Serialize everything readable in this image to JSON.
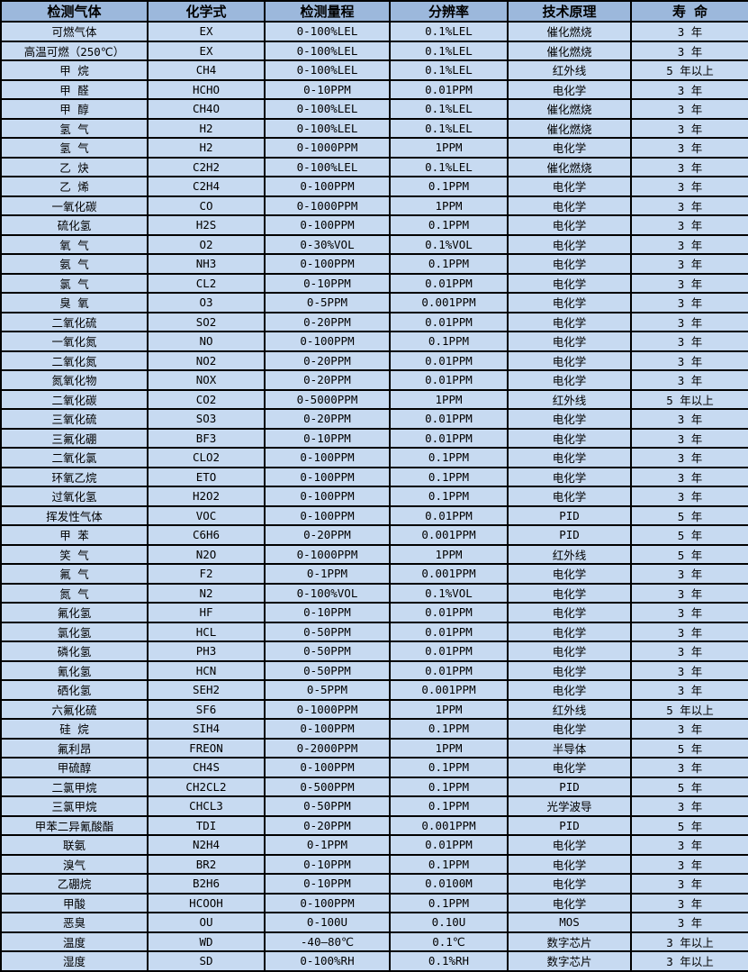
{
  "colors": {
    "header_bg": "#9cb8dc",
    "row_bg": "#c7daf1",
    "border": "#000000",
    "text": "#000000"
  },
  "table": {
    "headers": [
      "检测气体",
      "化学式",
      "检测量程",
      "分辨率",
      "技术原理",
      "寿 命"
    ],
    "rows": [
      [
        "可燃气体",
        "EX",
        "0-100%LEL",
        "0.1%LEL",
        "催化燃烧",
        "3 年"
      ],
      [
        "高温可燃（250℃）",
        "EX",
        "0-100%LEL",
        "0.1%LEL",
        "催化燃烧",
        "3 年"
      ],
      [
        "甲 烷",
        "CH4",
        "0-100%LEL",
        "0.1%LEL",
        "红外线",
        "5 年以上"
      ],
      [
        "甲 醛",
        "HCHO",
        "0-10PPM",
        "0.01PPM",
        "电化学",
        "3 年"
      ],
      [
        "甲 醇",
        "CH4O",
        "0-100%LEL",
        "0.1%LEL",
        "催化燃烧",
        "3 年"
      ],
      [
        "氢 气",
        "H2",
        "0-100%LEL",
        "0.1%LEL",
        "催化燃烧",
        "3 年"
      ],
      [
        "氢 气",
        "H2",
        "0-1000PPM",
        "1PPM",
        "电化学",
        "3 年"
      ],
      [
        "乙 炔",
        "C2H2",
        "0-100%LEL",
        "0.1%LEL",
        "催化燃烧",
        "3 年"
      ],
      [
        "乙 烯",
        "C2H4",
        "0-100PPM",
        "0.1PPM",
        "电化学",
        "3 年"
      ],
      [
        "一氧化碳",
        "CO",
        "0-1000PPM",
        "1PPM",
        "电化学",
        "3 年"
      ],
      [
        "硫化氢",
        "H2S",
        "0-100PPM",
        "0.1PPM",
        "电化学",
        "3 年"
      ],
      [
        "氧 气",
        "O2",
        "0-30%VOL",
        "0.1%VOL",
        "电化学",
        "3 年"
      ],
      [
        "氨 气",
        "NH3",
        "0-100PPM",
        "0.1PPM",
        "电化学",
        "3 年"
      ],
      [
        "氯 气",
        "CL2",
        "0-10PPM",
        "0.01PPM",
        "电化学",
        "3 年"
      ],
      [
        "臭 氧",
        "O3",
        "0-5PPM",
        "0.001PPM",
        "电化学",
        "3 年"
      ],
      [
        "二氧化硫",
        "SO2",
        "0-20PPM",
        "0.01PPM",
        "电化学",
        "3 年"
      ],
      [
        "一氧化氮",
        "NO",
        "0-100PPM",
        "0.1PPM",
        "电化学",
        "3 年"
      ],
      [
        "二氧化氮",
        "NO2",
        "0-20PPM",
        "0.01PPM",
        "电化学",
        "3 年"
      ],
      [
        "氮氧化物",
        "NOX",
        "0-20PPM",
        "0.01PPM",
        "电化学",
        "3 年"
      ],
      [
        "二氧化碳",
        "CO2",
        "0-5000PPM",
        "1PPM",
        "红外线",
        "5 年以上"
      ],
      [
        "三氧化硫",
        "SO3",
        "0-20PPM",
        "0.01PPM",
        "电化学",
        "3 年"
      ],
      [
        "三氟化硼",
        "BF3",
        "0-10PPM",
        "0.01PPM",
        "电化学",
        "3 年"
      ],
      [
        "二氧化氯",
        "CLO2",
        "0-100PPM",
        "0.1PPM",
        "电化学",
        "3 年"
      ],
      [
        "环氧乙烷",
        "ETO",
        "0-100PPM",
        "0.1PPM",
        "电化学",
        "3 年"
      ],
      [
        "过氧化氢",
        "H2O2",
        "0-100PPM",
        "0.1PPM",
        "电化学",
        "3 年"
      ],
      [
        "挥发性气体",
        "VOC",
        "0-100PPM",
        "0.01PPM",
        "PID",
        "5 年"
      ],
      [
        "甲 苯",
        "C6H6",
        "0-20PPM",
        "0.001PPM",
        "PID",
        "5 年"
      ],
      [
        "笑 气",
        "N2O",
        "0-1000PPM",
        "1PPM",
        "红外线",
        "5 年"
      ],
      [
        "氟 气",
        "F2",
        "0-1PPM",
        "0.001PPM",
        "电化学",
        "3 年"
      ],
      [
        "氮 气",
        "N2",
        "0-100%VOL",
        "0.1%VOL",
        "电化学",
        "3 年"
      ],
      [
        "氟化氢",
        "HF",
        "0-10PPM",
        "0.01PPM",
        "电化学",
        "3 年"
      ],
      [
        "氯化氢",
        "HCL",
        "0-50PPM",
        "0.01PPM",
        "电化学",
        "3 年"
      ],
      [
        "磷化氢",
        "PH3",
        "0-50PPM",
        "0.01PPM",
        "电化学",
        "3 年"
      ],
      [
        "氰化氢",
        "HCN",
        "0-50PPM",
        "0.01PPM",
        "电化学",
        "3 年"
      ],
      [
        "硒化氢",
        "SEH2",
        "0-5PPM",
        "0.001PPM",
        "电化学",
        "3 年"
      ],
      [
        "六氟化硫",
        "SF6",
        "0-1000PPM",
        "1PPM",
        "红外线",
        "5 年以上"
      ],
      [
        "硅 烷",
        "SIH4",
        "0-100PPM",
        "0.1PPM",
        "电化学",
        "3 年"
      ],
      [
        "氟利昂",
        "FREON",
        "0-2000PPM",
        "1PPM",
        "半导体",
        "5 年"
      ],
      [
        "甲硫醇",
        "CH4S",
        "0-100PPM",
        "0.1PPM",
        "电化学",
        "3 年"
      ],
      [
        "二氯甲烷",
        "CH2CL2",
        "0-500PPM",
        "0.1PPM",
        "PID",
        "5 年"
      ],
      [
        "三氯甲烷",
        "CHCL3",
        "0-50PPM",
        "0.1PPM",
        "光学波导",
        "3 年"
      ],
      [
        "甲苯二异氰酸酯",
        "TDI",
        "0-20PPM",
        "0.001PPM",
        "PID",
        "5 年"
      ],
      [
        "联氨",
        "N2H4",
        "0-1PPM",
        "0.01PPM",
        "电化学",
        "3 年"
      ],
      [
        "溴气",
        "BR2",
        "0-10PPM",
        "0.1PPM",
        "电化学",
        "3 年"
      ],
      [
        "乙硼烷",
        "B2H6",
        "0-10PPM",
        "0.0100M",
        "电化学",
        "3 年"
      ],
      [
        "甲酸",
        "HCOOH",
        "0-100PPM",
        "0.1PPM",
        "电化学",
        "3 年"
      ],
      [
        "恶臭",
        "OU",
        "0-100U",
        "0.10U",
        "MOS",
        "3 年"
      ],
      [
        "温度",
        "WD",
        "-40—80℃",
        "0.1℃",
        "数字芯片",
        "3 年以上"
      ],
      [
        "湿度",
        "SD",
        "0-100%RH",
        "0.1%RH",
        "数字芯片",
        "3 年以上"
      ]
    ]
  }
}
